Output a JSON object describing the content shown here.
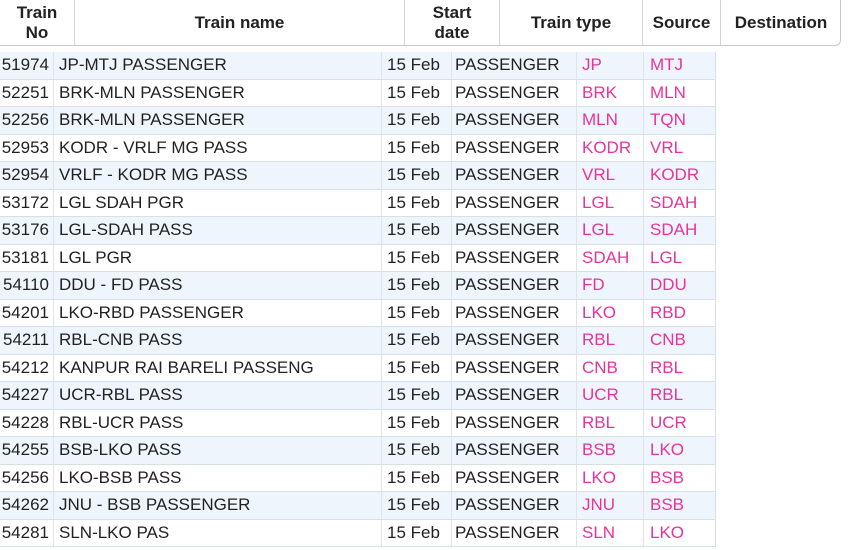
{
  "headers": {
    "train_no": "Train No",
    "train_name": "Train name",
    "start_date": "Start date",
    "train_type": "Train type",
    "source": "Source",
    "destination": "Destination"
  },
  "rows": [
    {
      "no": "51974",
      "name": "JP-MTJ PASSENGER",
      "date": "15 Feb",
      "type": "PASSENGER",
      "source": "JP",
      "destination": "MTJ"
    },
    {
      "no": "52251",
      "name": "BRK-MLN PASSENGER",
      "date": "15 Feb",
      "type": "PASSENGER",
      "source": "BRK",
      "destination": "MLN"
    },
    {
      "no": "52256",
      "name": "BRK-MLN PASSENGER",
      "date": "15 Feb",
      "type": "PASSENGER",
      "source": "MLN",
      "destination": "TQN"
    },
    {
      "no": "52953",
      "name": "KODR - VRLF MG PASS",
      "date": "15 Feb",
      "type": "PASSENGER",
      "source": "KODR",
      "destination": "VRL"
    },
    {
      "no": "52954",
      "name": "VRLF - KODR MG PASS",
      "date": "15 Feb",
      "type": "PASSENGER",
      "source": "VRL",
      "destination": "KODR"
    },
    {
      "no": "53172",
      "name": "LGL SDAH PGR",
      "date": "15 Feb",
      "type": "PASSENGER",
      "source": "LGL",
      "destination": "SDAH"
    },
    {
      "no": "53176",
      "name": "LGL-SDAH PASS",
      "date": "15 Feb",
      "type": "PASSENGER",
      "source": "LGL",
      "destination": "SDAH"
    },
    {
      "no": "53181",
      "name": "LGL PGR",
      "date": "15 Feb",
      "type": "PASSENGER",
      "source": "SDAH",
      "destination": "LGL"
    },
    {
      "no": "54110",
      "name": "DDU - FD PASS",
      "date": "15 Feb",
      "type": "PASSENGER",
      "source": "FD",
      "destination": "DDU"
    },
    {
      "no": "54201",
      "name": "LKO-RBD PASSENGER",
      "date": "15 Feb",
      "type": "PASSENGER",
      "source": "LKO",
      "destination": "RBD"
    },
    {
      "no": "54211",
      "name": "RBL-CNB PASS",
      "date": "15 Feb",
      "type": "PASSENGER",
      "source": "RBL",
      "destination": "CNB"
    },
    {
      "no": "54212",
      "name": "KANPUR RAI BARELI PASSENG",
      "date": "15 Feb",
      "type": "PASSENGER",
      "source": "CNB",
      "destination": "RBL"
    },
    {
      "no": "54227",
      "name": "UCR-RBL PASS",
      "date": "15 Feb",
      "type": "PASSENGER",
      "source": "UCR",
      "destination": "RBL"
    },
    {
      "no": "54228",
      "name": "RBL-UCR PASS",
      "date": "15 Feb",
      "type": "PASSENGER",
      "source": "RBL",
      "destination": "UCR"
    },
    {
      "no": "54255",
      "name": "BSB-LKO PASS",
      "date": "15 Feb",
      "type": "PASSENGER",
      "source": "BSB",
      "destination": "LKO"
    },
    {
      "no": "54256",
      "name": "LKO-BSB PASS",
      "date": "15 Feb",
      "type": "PASSENGER",
      "source": "LKO",
      "destination": "BSB"
    },
    {
      "no": "54262",
      "name": "JNU - BSB PASSENGER",
      "date": "15 Feb",
      "type": "PASSENGER",
      "source": "JNU",
      "destination": "BSB"
    },
    {
      "no": "54281",
      "name": "SLN-LKO PAS",
      "date": "15 Feb",
      "type": "PASSENGER",
      "source": "SLN",
      "destination": "LKO"
    }
  ],
  "colors": {
    "station_link": "#e8339a",
    "row_alt_bg": "#eef5fd",
    "text": "#222222"
  }
}
